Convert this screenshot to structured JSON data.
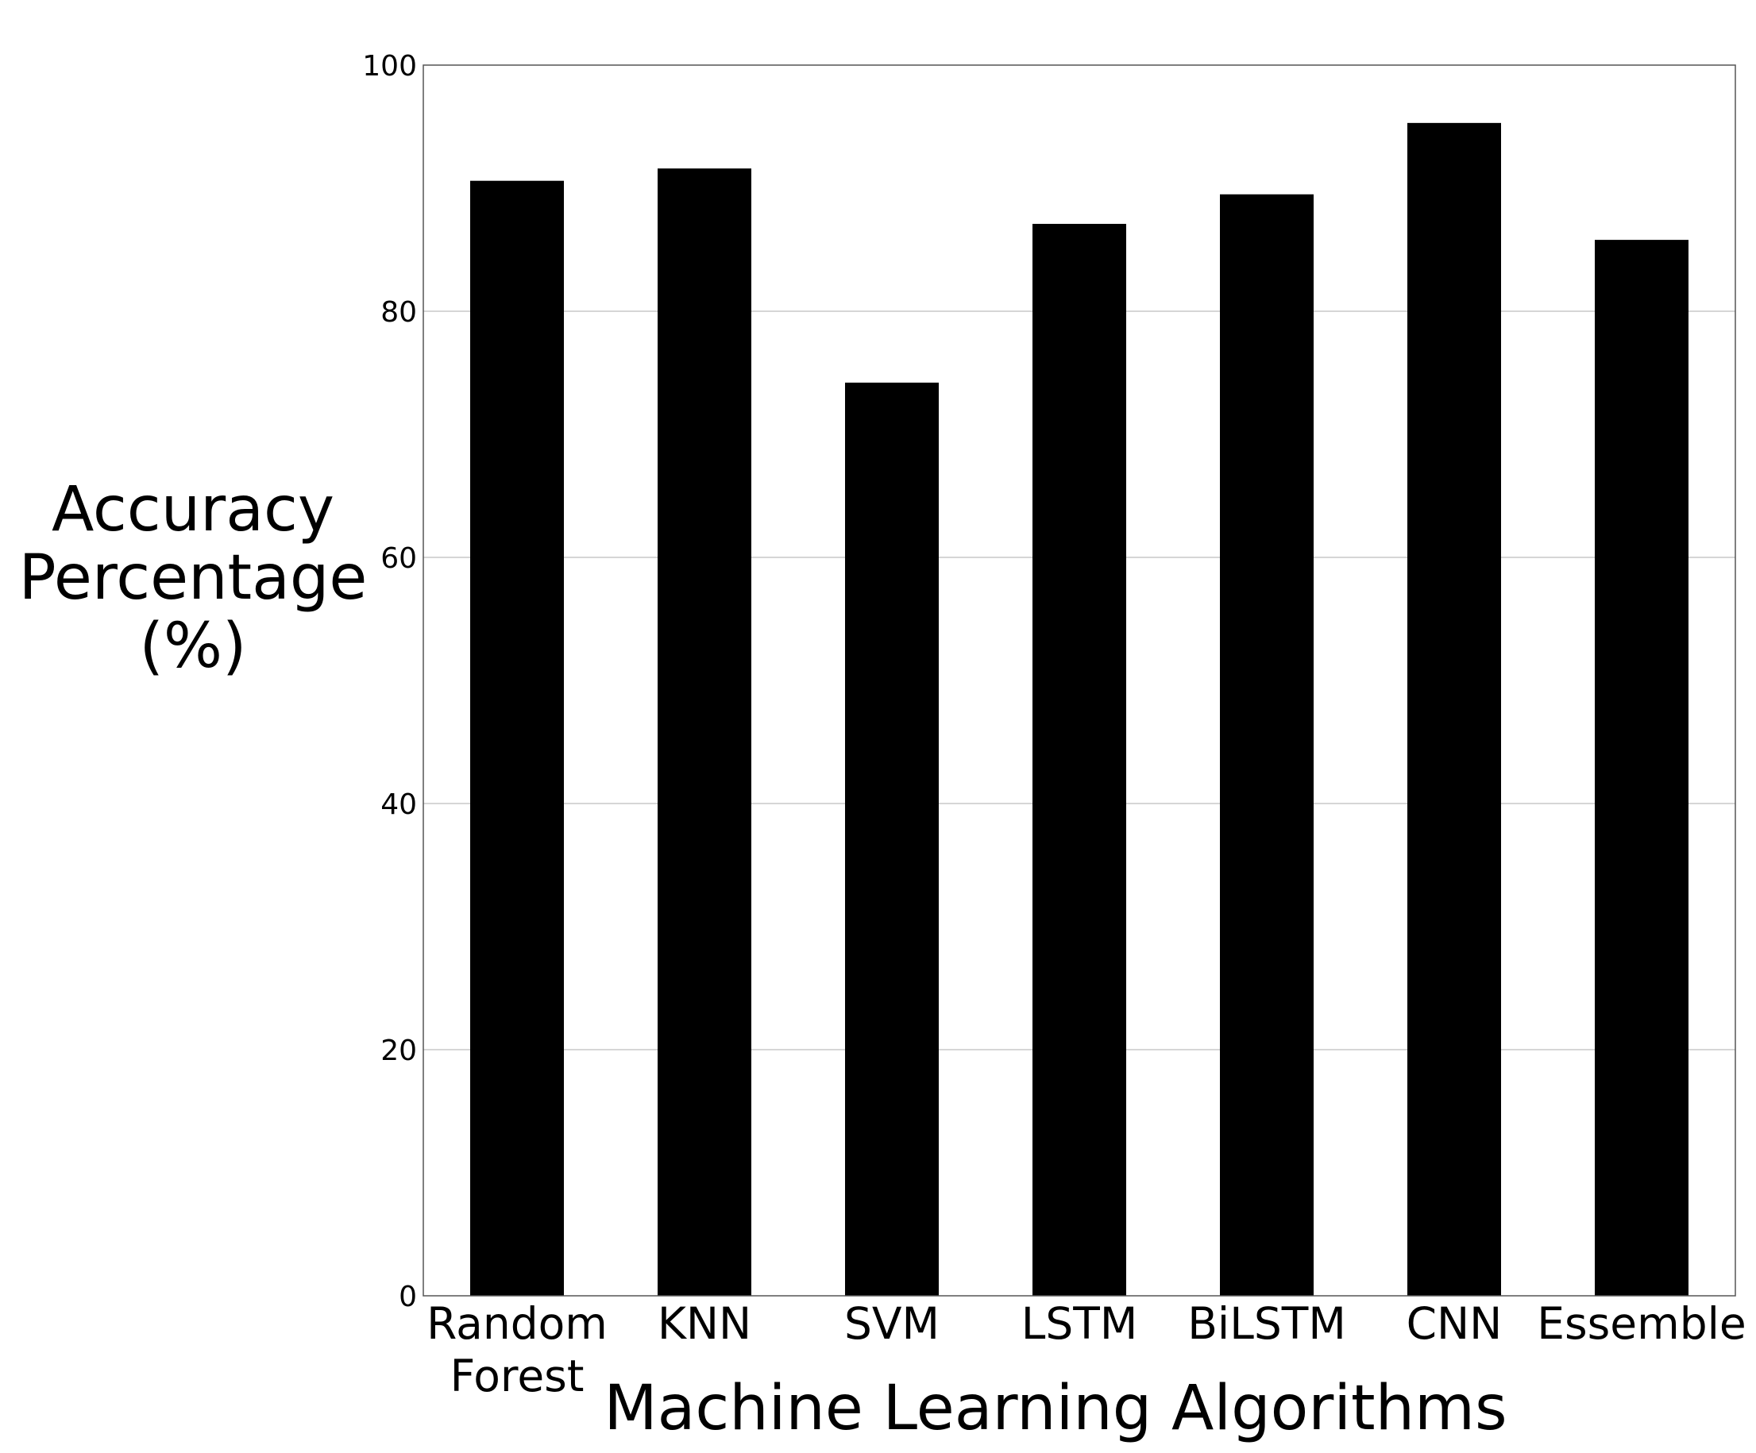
{
  "chart_data": {
    "type": "bar",
    "categories": [
      "Random Forest",
      "KNN",
      "SVM",
      "LSTM",
      "BiLSTM",
      "CNN",
      "Essemble"
    ],
    "category_lines": [
      [
        "Random",
        "Forest"
      ],
      [
        "KNN"
      ],
      [
        "SVM"
      ],
      [
        "LSTM"
      ],
      [
        "BiLSTM"
      ],
      [
        "CNN"
      ],
      [
        "Essemble"
      ]
    ],
    "values": [
      90.6,
      91.6,
      74.2,
      87.1,
      89.5,
      95.3,
      85.8
    ],
    "title": "",
    "xlabel": "Machine Learning Algorithms",
    "ylabel_lines": [
      "Accuracy",
      "Percentage",
      "(%)"
    ],
    "ylim": [
      0,
      100
    ],
    "yticks": [
      0,
      20,
      40,
      60,
      80,
      100
    ],
    "grid": true,
    "bar_color": "#000000",
    "grid_color": "#c8c8c8"
  }
}
